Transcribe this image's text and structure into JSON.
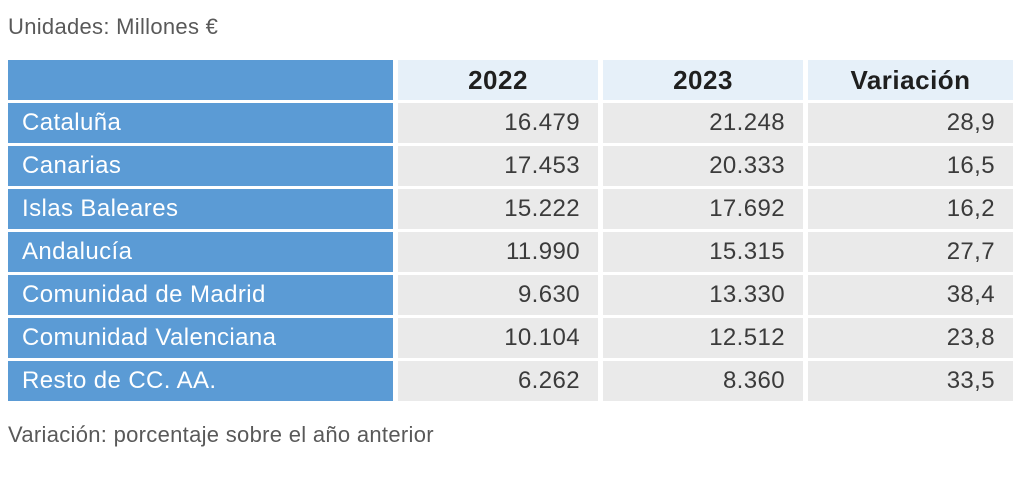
{
  "page": {
    "units_label": "Unidades: Millones €",
    "footnote": "Variación: porcentaje sobre el año anterior"
  },
  "colors": {
    "region_cell_bg": "#5B9BD5",
    "header_cell_bg": "#E6F0F9",
    "value_cell_bg": "#EAEAEA",
    "region_text": "#FFFFFF",
    "header_text": "#1F1F1F",
    "value_text": "#3B3B3B",
    "caption_text": "#595959"
  },
  "table": {
    "columns": [
      "",
      "2022",
      "2023",
      "Variación"
    ],
    "rows": [
      {
        "region": "Cataluña",
        "y2022": "16.479",
        "y2023": "21.248",
        "variacion": "28,9"
      },
      {
        "region": "Canarias",
        "y2022": "17.453",
        "y2023": "20.333",
        "variacion": "16,5"
      },
      {
        "region": "Islas Baleares",
        "y2022": "15.222",
        "y2023": "17.692",
        "variacion": "16,2"
      },
      {
        "region": "Andalucía",
        "y2022": "11.990",
        "y2023": "15.315",
        "variacion": "27,7"
      },
      {
        "region": "Comunidad de Madrid",
        "y2022": "9.630",
        "y2023": "13.330",
        "variacion": "38,4"
      },
      {
        "region": "Comunidad Valenciana",
        "y2022": "10.104",
        "y2023": "12.512",
        "variacion": "23,8"
      },
      {
        "region": "Resto de CC. AA.",
        "y2022": "6.262",
        "y2023": "8.360",
        "variacion": "33,5"
      }
    ]
  },
  "chart_data": {
    "type": "table",
    "title": "Unidades: Millones €",
    "columns": [
      "",
      "2022",
      "2023",
      "Variación"
    ],
    "rows": [
      [
        "Cataluña",
        "16.479",
        "21.248",
        "28,9"
      ],
      [
        "Canarias",
        "17.453",
        "20.333",
        "16,5"
      ],
      [
        "Islas Baleares",
        "15.222",
        "17.692",
        "16,2"
      ],
      [
        "Andalucía",
        "11.990",
        "15.315",
        "27,7"
      ],
      [
        "Comunidad de Madrid",
        "9.630",
        "13.330",
        "38,4"
      ],
      [
        "Comunidad Valenciana",
        "10.104",
        "12.512",
        "23,8"
      ],
      [
        "Resto de CC. AA.",
        "6.262",
        "8.360",
        "33,5"
      ]
    ],
    "values_numeric": {
      "regions": [
        "Cataluña",
        "Canarias",
        "Islas Baleares",
        "Andalucía",
        "Comunidad de Madrid",
        "Comunidad Valenciana",
        "Resto de CC. AA."
      ],
      "y2022": [
        16479,
        17453,
        15222,
        11990,
        9630,
        10104,
        6262
      ],
      "y2023": [
        21248,
        20333,
        17692,
        15315,
        13330,
        12512,
        8360
      ],
      "variacion_pct": [
        28.9,
        16.5,
        16.2,
        27.7,
        38.4,
        23.8,
        33.5
      ]
    },
    "footnote": "Variación: porcentaje sobre el año anterior"
  }
}
